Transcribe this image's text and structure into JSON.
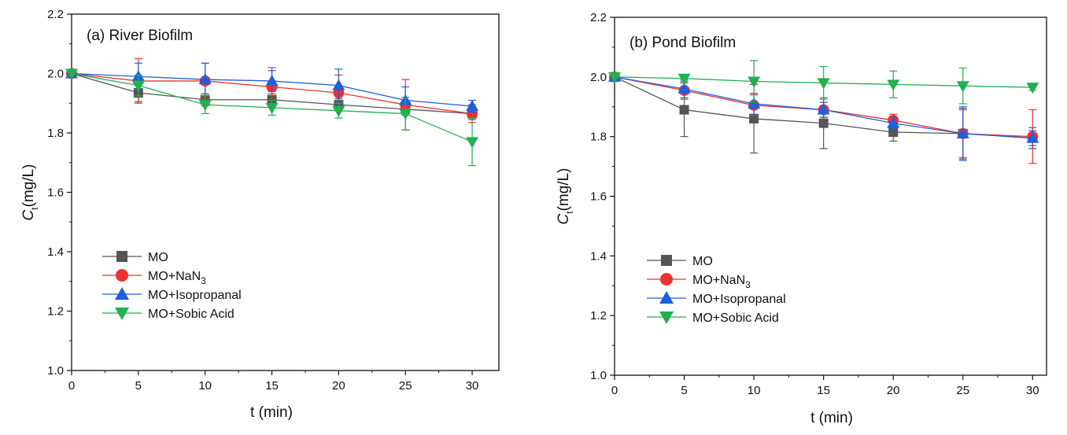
{
  "chart_data": [
    {
      "type": "line",
      "title": "(a) River Biofilm",
      "xlabel": "t (min)",
      "ylabel_main": "C",
      "ylabel_sub": "t",
      "ylabel_unit": "(mg/L)",
      "x": [
        0,
        5,
        10,
        15,
        20,
        25,
        30
      ],
      "x_ticks": [
        "0",
        "5",
        "10",
        "15",
        "20",
        "25",
        "30"
      ],
      "xlim": [
        0,
        32
      ],
      "y_ticks": [
        "1.0",
        "1.2",
        "1.4",
        "1.6",
        "1.8",
        "2.0",
        "2.2"
      ],
      "ylim": [
        1.0,
        2.2
      ],
      "legend_position": "bottom-left",
      "series": [
        {
          "name": "MO",
          "label_main": "MO",
          "label_sub": "",
          "color": "#555555",
          "marker": "square",
          "values": [
            2.0,
            1.935,
            1.912,
            1.912,
            1.895,
            1.88,
            1.865
          ],
          "errors": [
            0.0,
            0.03,
            0.02,
            0.02,
            0.02,
            0.02,
            0.02
          ]
        },
        {
          "name": "MO+NaN3",
          "label_main": "MO+NaN",
          "label_sub": "3",
          "color": "#ee3030",
          "marker": "circle",
          "values": [
            2.0,
            1.975,
            1.975,
            1.955,
            1.935,
            1.895,
            1.865
          ],
          "errors": [
            0.0,
            0.075,
            0.06,
            0.065,
            0.06,
            0.085,
            0.03
          ]
        },
        {
          "name": "MO+Isopropanal",
          "label_main": "MO+Isopropanal",
          "label_sub": "",
          "color": "#1f5fdc",
          "marker": "triangle-up",
          "values": [
            2.0,
            1.99,
            1.98,
            1.975,
            1.96,
            1.91,
            1.89
          ],
          "errors": [
            0.0,
            0.045,
            0.055,
            0.035,
            0.055,
            0.045,
            0.02
          ]
        },
        {
          "name": "MO+Sobic Acid",
          "label_main": "MO+Sobic Acid",
          "label_sub": "",
          "color": "#22b050",
          "marker": "triangle-down",
          "values": [
            2.0,
            1.96,
            1.895,
            1.885,
            1.875,
            1.865,
            1.77
          ],
          "errors": [
            0.0,
            0.035,
            0.03,
            0.025,
            0.025,
            0.055,
            0.08
          ]
        }
      ]
    },
    {
      "type": "line",
      "title": "(b) Pond Biofilm",
      "xlabel": "t (min)",
      "ylabel_main": "C",
      "ylabel_sub": "t",
      "ylabel_unit": "(mg/L)",
      "x": [
        0,
        5,
        10,
        15,
        20,
        25,
        30
      ],
      "x_ticks": [
        "0",
        "5",
        "10",
        "15",
        "20",
        "25",
        "30"
      ],
      "xlim": [
        0,
        31
      ],
      "y_ticks": [
        "1.0",
        "1.2",
        "1.4",
        "1.6",
        "1.8",
        "2.0",
        "2.2"
      ],
      "ylim": [
        1.0,
        2.2
      ],
      "legend_position": "bottom-left",
      "series": [
        {
          "name": "MO",
          "label_main": "MO",
          "label_sub": "",
          "color": "#555555",
          "marker": "square",
          "values": [
            2.0,
            1.89,
            1.86,
            1.845,
            1.815,
            1.81,
            1.795
          ],
          "errors": [
            0.0,
            0.09,
            0.115,
            0.085,
            0.03,
            0.085,
            0.035
          ]
        },
        {
          "name": "MO+NaN3",
          "label_main": "MO+NaN",
          "label_sub": "3",
          "color": "#ee3030",
          "marker": "circle",
          "values": [
            2.0,
            1.955,
            1.905,
            1.89,
            1.855,
            1.81,
            1.8
          ],
          "errors": [
            0.0,
            0.03,
            0.035,
            0.025,
            0.02,
            0.08,
            0.09
          ]
        },
        {
          "name": "MO+Isopropanal",
          "label_main": "MO+Isopropanal",
          "label_sub": "",
          "color": "#1f5fdc",
          "marker": "triangle-up",
          "values": [
            2.0,
            1.96,
            1.91,
            1.89,
            1.845,
            1.81,
            1.795
          ],
          "errors": [
            0.0,
            0.03,
            0.035,
            0.025,
            0.02,
            0.09,
            0.025
          ]
        },
        {
          "name": "MO+Sobic Acid",
          "label_main": "MO+Sobic Acid",
          "label_sub": "",
          "color": "#22b050",
          "marker": "triangle-down",
          "values": [
            2.0,
            1.995,
            1.985,
            1.98,
            1.975,
            1.97,
            1.965
          ],
          "errors": [
            0.0,
            0.01,
            0.07,
            0.055,
            0.045,
            0.06,
            0.01
          ]
        }
      ]
    }
  ]
}
